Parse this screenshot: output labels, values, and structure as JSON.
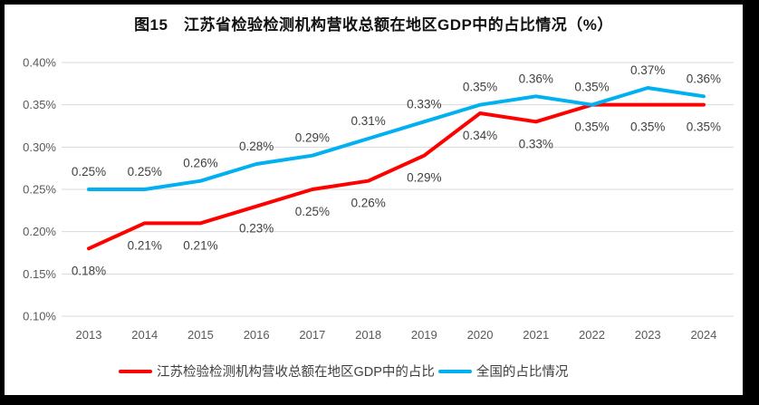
{
  "chart_data": {
    "type": "line",
    "title": "图15　江苏省检验检测机构营收总额在地区GDP中的占比情况（%）",
    "categories": [
      "2013",
      "2014",
      "2015",
      "2016",
      "2017",
      "2018",
      "2019",
      "2020",
      "2021",
      "2022",
      "2023",
      "2024"
    ],
    "series": [
      {
        "name": "江苏检验检测机构营收总额在地区GDP中的占比",
        "color": "#FF0000",
        "values": [
          0.18,
          0.21,
          0.21,
          0.23,
          0.25,
          0.26,
          0.29,
          0.34,
          0.33,
          0.35,
          0.35,
          0.35
        ],
        "labels": [
          "0.18%",
          "0.21%",
          "0.21%",
          "0.23%",
          "0.25%",
          "0.26%",
          "0.29%",
          "0.34%",
          "0.33%",
          "0.35%",
          "0.35%",
          "0.35%"
        ],
        "label_position": "below"
      },
      {
        "name": "全国的占比情况",
        "color": "#00B0F0",
        "values": [
          0.25,
          0.25,
          0.26,
          0.28,
          0.29,
          0.31,
          0.33,
          0.35,
          0.36,
          0.35,
          0.37,
          0.36
        ],
        "labels": [
          "0.25%",
          "0.25%",
          "0.26%",
          "0.28%",
          "0.29%",
          "0.31%",
          "0.33%",
          "0.35%",
          "0.36%",
          "0.35%",
          "0.37%",
          "0.36%"
        ],
        "label_position": "above"
      }
    ],
    "y_axis": {
      "unit": "%",
      "min": 0.1,
      "max": 0.4,
      "tick_values": [
        0.4,
        0.35,
        0.3,
        0.25,
        0.2,
        0.15,
        0.1
      ],
      "ticks": [
        "0.40%",
        "0.35%",
        "0.30%",
        "0.25%",
        "0.20%",
        "0.15%",
        "0.10%"
      ]
    },
    "grid": "horizontal",
    "legend_position": "bottom",
    "colors": {
      "grid": "#D9D9D9",
      "axis_text": "#595959",
      "data_label": "#404040",
      "frame": "#000000",
      "background": "#FFFFFF"
    }
  }
}
